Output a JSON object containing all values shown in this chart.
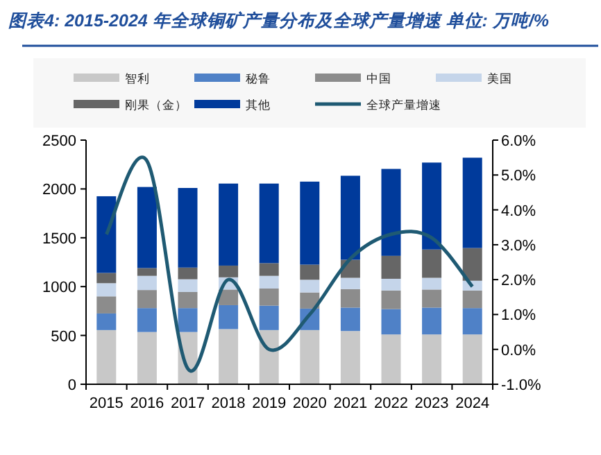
{
  "chart_data": {
    "type": "bar",
    "stacked": true,
    "title": "图表4:  2015-2024 年全球铜矿产量分布及全球产量增速  单位: 万吨/%",
    "categories": [
      "2015",
      "2016",
      "2017",
      "2018",
      "2019",
      "2020",
      "2021",
      "2022",
      "2023",
      "2024"
    ],
    "series": [
      {
        "name": "智利",
        "color": "#c8c8c8",
        "values": [
          555,
          535,
          535,
          565,
          555,
          555,
          545,
          510,
          510,
          510
        ]
      },
      {
        "name": "秘鲁",
        "color": "#4f81c7",
        "values": [
          170,
          245,
          245,
          245,
          250,
          220,
          240,
          260,
          275,
          270
        ]
      },
      {
        "name": "中国",
        "color": "#8c8c8c",
        "values": [
          175,
          185,
          165,
          160,
          175,
          165,
          190,
          190,
          185,
          180
        ]
      },
      {
        "name": "美国",
        "color": "#c5d5ea",
        "values": [
          135,
          145,
          130,
          125,
          130,
          130,
          115,
          120,
          120,
          100
        ]
      },
      {
        "name": "刚果（金）",
        "color": "#666666",
        "values": [
          105,
          80,
          120,
          120,
          130,
          155,
          185,
          235,
          290,
          335
        ]
      },
      {
        "name": "其他",
        "color": "#003a9b",
        "values": [
          785,
          830,
          815,
          840,
          815,
          850,
          860,
          890,
          890,
          925
        ]
      },
      {
        "name": "全球产量增速",
        "type": "line",
        "axis": "y2",
        "color": "#1f5a73",
        "values": [
          3.3,
          5.4,
          -0.55,
          2.0,
          0.0,
          1.0,
          2.6,
          3.3,
          3.2,
          1.8
        ]
      }
    ],
    "ylim": [
      0,
      2500
    ],
    "yticks": [
      0,
      500,
      1000,
      1500,
      2000,
      2500
    ],
    "y2lim": [
      -1,
      6
    ],
    "y2ticks": [
      {
        "value": -1,
        "label": "-1.0%"
      },
      {
        "value": 0,
        "label": "0.0%"
      },
      {
        "value": 1,
        "label": "1.0%"
      },
      {
        "value": 2,
        "label": "2.0%"
      },
      {
        "value": 3,
        "label": "3.0%"
      },
      {
        "value": 4,
        "label": "4.0%"
      },
      {
        "value": 5,
        "label": "5.0%"
      },
      {
        "value": 6,
        "label": "6.0%"
      }
    ],
    "legend": "top",
    "grid": false
  }
}
